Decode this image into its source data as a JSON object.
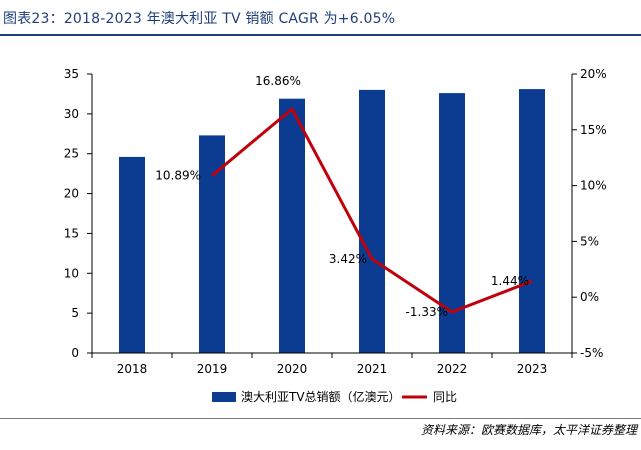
{
  "header": {
    "title": "图表23：2018-2023 年澳大利亚 TV 销额 CAGR 为+6.05%"
  },
  "footer": {
    "source": "资料来源：欧赛数据库，太平洋证券整理"
  },
  "colors": {
    "bar": "#0b3c91",
    "line": "#c0000b",
    "title": "#1f3f7a"
  },
  "chart_data": {
    "type": "bar",
    "title": "2018-2023 年澳大利亚 TV 销额 CAGR 为+6.05%",
    "categories": [
      "2018",
      "2019",
      "2020",
      "2021",
      "2022",
      "2023"
    ],
    "series": [
      {
        "name": "澳大利亚TV总销额（亿澳元）",
        "type": "bar",
        "axis": "left",
        "values": [
          24.6,
          27.3,
          31.9,
          33.0,
          32.6,
          33.1
        ]
      },
      {
        "name": "同比",
        "type": "line",
        "axis": "right",
        "values": [
          null,
          10.89,
          16.86,
          3.42,
          -1.33,
          1.44
        ],
        "labels": [
          "",
          "10.89%",
          "16.86%",
          "3.42%",
          "-1.33%",
          "1.44%"
        ]
      }
    ],
    "ylim_left": [
      0,
      35
    ],
    "yticks_left": [
      "0",
      "5",
      "10",
      "15",
      "20",
      "25",
      "30",
      "35"
    ],
    "ylim_right": [
      -5,
      20
    ],
    "yticks_right": [
      "-5%",
      "0%",
      "5%",
      "10%",
      "15%",
      "20%"
    ],
    "grid": false,
    "legend": "bottom"
  }
}
